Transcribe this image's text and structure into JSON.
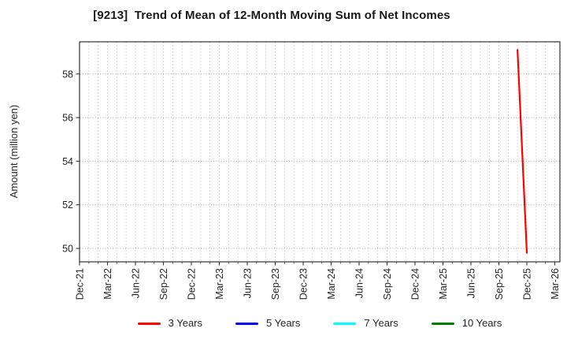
{
  "header": {
    "title": "[9213]  Trend of Mean of 12-Month Moving Sum of Net Incomes"
  },
  "chart_data": {
    "type": "line",
    "title": "[9213]  Trend of Mean of 12-Month Moving Sum of Net Incomes",
    "xlabel": "",
    "ylabel": "Amount (million yen)",
    "x_tick_labels": [
      "Dec-21",
      "Mar-22",
      "Jun-22",
      "Sep-22",
      "Dec-22",
      "Mar-23",
      "Jun-23",
      "Sep-23",
      "Dec-23",
      "Mar-24",
      "Jun-24",
      "Sep-24",
      "Dec-24",
      "Mar-25",
      "Jun-25",
      "Sep-25",
      "Dec-25",
      "Mar-26"
    ],
    "months_per_major_tick": 3,
    "total_months": 51,
    "yticks": [
      50,
      52,
      54,
      56,
      58
    ],
    "ylim": [
      49.4,
      59.5
    ],
    "grid": "dotted, monthly vertical + horizontal at each y tick",
    "legend_position": "bottom",
    "series": [
      {
        "name": "3 Years",
        "color": "#ff0000",
        "points": [
          {
            "month": "Nov-25",
            "month_index": 47,
            "value": 59.1
          },
          {
            "month": "Dec-25",
            "month_index": 48,
            "value": 49.8
          }
        ]
      },
      {
        "name": "5 Years",
        "color": "#0000ff",
        "points": []
      },
      {
        "name": "7 Years",
        "color": "#00ffff",
        "points": []
      },
      {
        "name": "10 Years",
        "color": "#008000",
        "points": []
      }
    ]
  },
  "colors": {
    "background": "#ffffff",
    "axis_border": "#333333",
    "grid_vertical": "#b3b3b3",
    "grid_horizontal": "#9e9e9e",
    "tick_label": "#262626",
    "title_text": "#1a1a1a"
  }
}
